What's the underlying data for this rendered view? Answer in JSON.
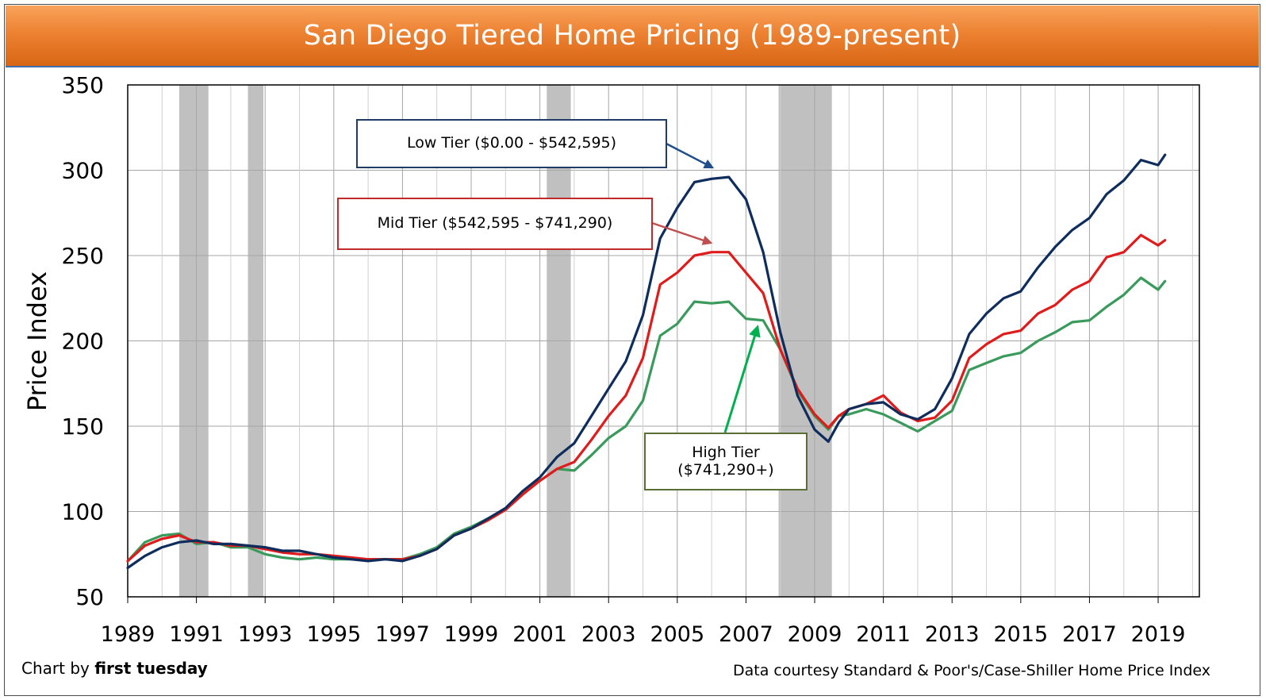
{
  "title": "San Diego Tiered Home Pricing (1989-present)",
  "credit_left_prefix": "Chart by ",
  "credit_left_brand": "first tuesday",
  "credit_right": "Data courtesy Standard & Poor's/Case-Shiller Home Price Index",
  "annotations": {
    "low": "Low Tier ($0.00 - $542,595)",
    "mid": "Mid Tier ($542,595 - $741,290)",
    "high_line1": "High Tier",
    "high_line2": "($741,290+)"
  },
  "colors": {
    "low": "#0f2d5c",
    "mid": "#e01b1b",
    "high": "#3a9a5c",
    "recession": "#c0c0c0",
    "high_arrow": "#00b050",
    "mid_arrow": "#c05050",
    "low_arrow": "#1f4e8a"
  },
  "chart_data": {
    "type": "line",
    "title": "San Diego Tiered Home Pricing (1989-present)",
    "xlabel": "",
    "ylabel": "Price Index",
    "xlim": [
      1989,
      2020.2
    ],
    "ylim": [
      50,
      350
    ],
    "yticks": [
      50,
      100,
      150,
      200,
      250,
      300,
      350
    ],
    "xticks": [
      1989,
      1991,
      1993,
      1995,
      1997,
      1999,
      2001,
      2003,
      2005,
      2007,
      2009,
      2011,
      2013,
      2015,
      2017,
      2019
    ],
    "grid": true,
    "recessions": [
      [
        1990.5,
        1991.35
      ],
      [
        1992.5,
        1992.95
      ],
      [
        2001.2,
        2001.9
      ],
      [
        2007.95,
        2009.5
      ]
    ],
    "series": [
      {
        "name": "Low Tier ($0.00 - $542,595)",
        "color": "#0f2d5c",
        "x": [
          1989,
          1989.5,
          1990,
          1990.5,
          1991,
          1991.5,
          1992,
          1992.5,
          1993,
          1993.5,
          1994,
          1994.5,
          1995,
          1995.5,
          1996,
          1996.5,
          1997,
          1997.5,
          1998,
          1998.5,
          1999,
          1999.5,
          2000,
          2000.5,
          2001,
          2001.5,
          2002,
          2002.5,
          2003,
          2003.5,
          2004,
          2004.5,
          2005,
          2005.5,
          2006,
          2006.5,
          2007,
          2007.5,
          2008,
          2008.5,
          2009,
          2009.4,
          2009.7,
          2010,
          2010.5,
          2011,
          2011.5,
          2012,
          2012.5,
          2013,
          2013.5,
          2014,
          2014.5,
          2015,
          2015.5,
          2016,
          2016.5,
          2017,
          2017.5,
          2018,
          2018.5,
          2019,
          2019.2
        ],
        "values": [
          67,
          74,
          79,
          82,
          83,
          81,
          81,
          80,
          79,
          77,
          77,
          75,
          73,
          72,
          71,
          72,
          71,
          74,
          78,
          86,
          90,
          96,
          102,
          112,
          120,
          132,
          140,
          156,
          172,
          188,
          215,
          260,
          278,
          293,
          295,
          296,
          283,
          252,
          205,
          168,
          148,
          141,
          152,
          160,
          163,
          164,
          157,
          154,
          160,
          178,
          204,
          216,
          225,
          229,
          243,
          255,
          265,
          272,
          286,
          294,
          306,
          303,
          309
        ]
      },
      {
        "name": "Mid Tier ($542,595 - $741,290)",
        "color": "#e01b1b",
        "x": [
          1989,
          1989.5,
          1990,
          1990.5,
          1991,
          1991.5,
          1992,
          1992.5,
          1993,
          1993.5,
          1994,
          1994.5,
          1995,
          1995.5,
          1996,
          1996.5,
          1997,
          1997.5,
          1998,
          1998.5,
          1999,
          1999.5,
          2000,
          2000.5,
          2001,
          2001.5,
          2002,
          2002.5,
          2003,
          2003.5,
          2004,
          2004.5,
          2005,
          2005.5,
          2006,
          2006.5,
          2007,
          2007.5,
          2008,
          2008.5,
          2009,
          2009.4,
          2009.7,
          2010,
          2010.5,
          2011,
          2011.5,
          2012,
          2012.5,
          2013,
          2013.5,
          2014,
          2014.5,
          2015,
          2015.5,
          2016,
          2016.5,
          2017,
          2017.5,
          2018,
          2018.5,
          2019,
          2019.2
        ],
        "values": [
          71,
          80,
          84,
          86,
          82,
          82,
          80,
          80,
          78,
          76,
          75,
          75,
          74,
          73,
          72,
          72,
          72,
          74,
          78,
          86,
          90,
          95,
          101,
          110,
          118,
          125,
          129,
          142,
          156,
          168,
          190,
          233,
          240,
          250,
          252,
          252,
          240,
          228,
          195,
          172,
          157,
          149,
          156,
          160,
          163,
          168,
          158,
          153,
          155,
          165,
          190,
          198,
          204,
          206,
          216,
          221,
          230,
          235,
          249,
          252,
          262,
          256,
          259
        ]
      },
      {
        "name": "High Tier ($741,290+)",
        "color": "#3a9a5c",
        "x": [
          1989,
          1989.5,
          1990,
          1990.5,
          1991,
          1991.5,
          1992,
          1992.5,
          1993,
          1993.5,
          1994,
          1994.5,
          1995,
          1995.5,
          1996,
          1996.5,
          1997,
          1997.5,
          1998,
          1998.5,
          1999,
          1999.5,
          2000,
          2000.5,
          2001,
          2001.5,
          2002,
          2002.5,
          2003,
          2003.5,
          2004,
          2004.5,
          2005,
          2005.5,
          2006,
          2006.5,
          2007,
          2007.5,
          2008,
          2008.5,
          2009,
          2009.4,
          2009.7,
          2010,
          2010.5,
          2011,
          2011.5,
          2012,
          2012.5,
          2013,
          2013.5,
          2014,
          2014.5,
          2015,
          2015.5,
          2016,
          2016.5,
          2017,
          2017.5,
          2018,
          2018.5,
          2019,
          2019.2
        ],
        "values": [
          71,
          82,
          86,
          87,
          81,
          82,
          79,
          79,
          75,
          73,
          72,
          73,
          72,
          72,
          72,
          72,
          72,
          75,
          79,
          87,
          91,
          96,
          101,
          112,
          118,
          125,
          124,
          133,
          143,
          150,
          165,
          203,
          210,
          223,
          222,
          223,
          213,
          212,
          195,
          171,
          156,
          148,
          156,
          157,
          160,
          157,
          152,
          147,
          153,
          159,
          183,
          187,
          191,
          193,
          200,
          205,
          211,
          212,
          220,
          227,
          237,
          230,
          235
        ]
      }
    ]
  }
}
